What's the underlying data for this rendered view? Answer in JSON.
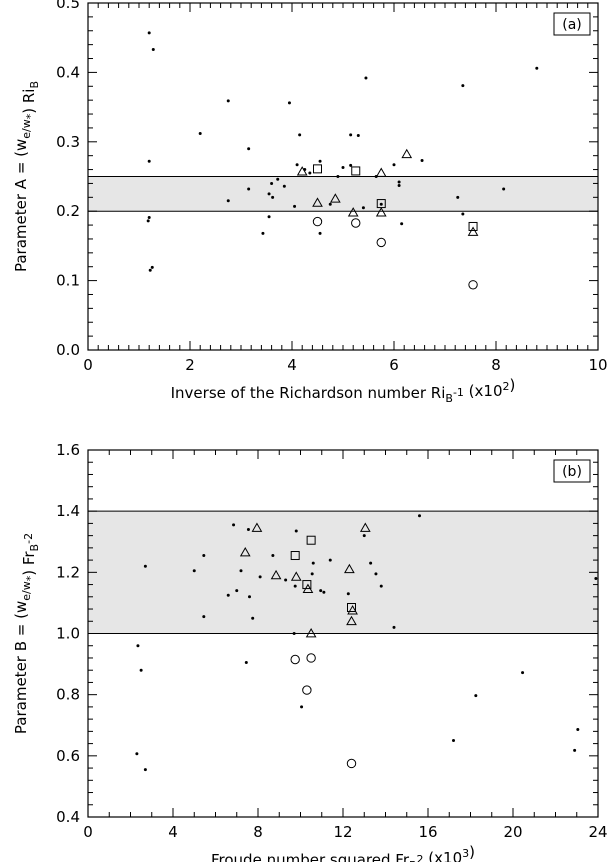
{
  "chart_data": [
    {
      "type": "scatter",
      "panel_label": "(a)",
      "xlabel": "Inverse of the Richardson number Ri_B^-1 (x10^2)",
      "ylabel": "Parameter A = (w_e/w_*) Ri_B",
      "xlim": [
        0,
        10
      ],
      "ylim": [
        0.0,
        0.5
      ],
      "xticks": [
        0,
        2,
        4,
        6,
        8,
        10
      ],
      "yticks": [
        0.0,
        0.1,
        0.2,
        0.3,
        0.4,
        0.5
      ],
      "shaded_band": [
        0.2,
        0.25
      ],
      "grid": false,
      "series": [
        {
          "marker": "dot",
          "points": [
            [
              1.2,
              0.457
            ],
            [
              1.28,
              0.433
            ],
            [
              1.2,
              0.272
            ],
            [
              1.18,
              0.186
            ],
            [
              1.2,
              0.191
            ],
            [
              1.22,
              0.115
            ],
            [
              1.26,
              0.119
            ],
            [
              2.2,
              0.312
            ],
            [
              2.75,
              0.359
            ],
            [
              2.75,
              0.215
            ],
            [
              3.15,
              0.29
            ],
            [
              3.15,
              0.232
            ],
            [
              3.43,
              0.168
            ],
            [
              3.55,
              0.192
            ],
            [
              3.55,
              0.225
            ],
            [
              3.6,
              0.24
            ],
            [
              3.62,
              0.22
            ],
            [
              3.72,
              0.246
            ],
            [
              3.85,
              0.236
            ],
            [
              3.95,
              0.356
            ],
            [
              4.05,
              0.207
            ],
            [
              4.1,
              0.267
            ],
            [
              4.15,
              0.31
            ],
            [
              4.25,
              0.26
            ],
            [
              4.35,
              0.255
            ],
            [
              4.55,
              0.168
            ],
            [
              4.55,
              0.272
            ],
            [
              4.75,
              0.21
            ],
            [
              4.9,
              0.25
            ],
            [
              5.0,
              0.263
            ],
            [
              5.15,
              0.266
            ],
            [
              5.15,
              0.31
            ],
            [
              5.3,
              0.309
            ],
            [
              5.4,
              0.205
            ],
            [
              5.45,
              0.392
            ],
            [
              5.65,
              0.25
            ],
            [
              5.75,
              0.21
            ],
            [
              6.0,
              0.267
            ],
            [
              6.1,
              0.237
            ],
            [
              6.1,
              0.242
            ],
            [
              6.15,
              0.182
            ],
            [
              6.55,
              0.273
            ],
            [
              7.25,
              0.22
            ],
            [
              7.35,
              0.381
            ],
            [
              7.35,
              0.196
            ],
            [
              8.15,
              0.232
            ],
            [
              8.8,
              0.406
            ]
          ]
        },
        {
          "marker": "triangle",
          "points": [
            [
              4.2,
              0.257
            ],
            [
              4.5,
              0.212
            ],
            [
              4.85,
              0.218
            ],
            [
              5.2,
              0.198
            ],
            [
              5.75,
              0.255
            ],
            [
              5.75,
              0.198
            ],
            [
              6.25,
              0.282
            ],
            [
              7.55,
              0.17
            ]
          ]
        },
        {
          "marker": "square",
          "points": [
            [
              4.5,
              0.261
            ],
            [
              5.25,
              0.258
            ],
            [
              5.75,
              0.211
            ],
            [
              7.55,
              0.178
            ]
          ]
        },
        {
          "marker": "circle",
          "points": [
            [
              4.5,
              0.185
            ],
            [
              5.25,
              0.183
            ],
            [
              5.75,
              0.155
            ],
            [
              7.55,
              0.094
            ]
          ]
        }
      ]
    },
    {
      "type": "scatter",
      "panel_label": "(b)",
      "xlabel": "Froude number squared Fr_B^2 (x10^3)",
      "ylabel": "Parameter B = (w_e/w_*) Fr_B^-2",
      "xlim": [
        0,
        24
      ],
      "ylim": [
        0.4,
        1.6
      ],
      "xticks": [
        0,
        4,
        8,
        12,
        16,
        20,
        24
      ],
      "yticks": [
        0.4,
        0.6,
        0.8,
        1.0,
        1.2,
        1.4,
        1.6
      ],
      "shaded_band": [
        1.0,
        1.4
      ],
      "grid": false,
      "series": [
        {
          "marker": "dot",
          "points": [
            [
              2.35,
              0.96
            ],
            [
              2.3,
              0.607
            ],
            [
              2.5,
              0.88
            ],
            [
              2.7,
              1.22
            ],
            [
              2.7,
              0.555
            ],
            [
              5.0,
              1.205
            ],
            [
              5.45,
              1.255
            ],
            [
              5.45,
              1.055
            ],
            [
              6.6,
              1.125
            ],
            [
              6.85,
              1.355
            ],
            [
              7.0,
              1.14
            ],
            [
              7.2,
              1.205
            ],
            [
              7.45,
              0.905
            ],
            [
              7.55,
              1.34
            ],
            [
              7.6,
              1.12
            ],
            [
              7.75,
              1.05
            ],
            [
              8.1,
              1.185
            ],
            [
              8.7,
              1.255
            ],
            [
              9.3,
              1.175
            ],
            [
              9.7,
              1.0
            ],
            [
              9.75,
              1.155
            ],
            [
              9.8,
              1.335
            ],
            [
              10.05,
              0.76
            ],
            [
              10.55,
              1.195
            ],
            [
              10.6,
              1.23
            ],
            [
              10.95,
              1.14
            ],
            [
              11.1,
              1.135
            ],
            [
              11.4,
              1.24
            ],
            [
              12.25,
              1.13
            ],
            [
              13.0,
              1.32
            ],
            [
              13.3,
              1.23
            ],
            [
              13.55,
              1.195
            ],
            [
              13.8,
              1.155
            ],
            [
              14.4,
              1.02
            ],
            [
              15.6,
              1.385
            ],
            [
              17.2,
              0.65
            ],
            [
              18.25,
              0.797
            ],
            [
              20.45,
              0.872
            ],
            [
              22.9,
              0.618
            ],
            [
              23.05,
              0.686
            ],
            [
              23.9,
              1.18
            ]
          ]
        },
        {
          "marker": "triangle",
          "points": [
            [
              7.4,
              1.265
            ],
            [
              7.95,
              1.345
            ],
            [
              8.85,
              1.19
            ],
            [
              9.8,
              1.185
            ],
            [
              10.35,
              1.145
            ],
            [
              10.5,
              1.0
            ],
            [
              12.3,
              1.21
            ],
            [
              12.4,
              1.04
            ],
            [
              12.45,
              1.075
            ],
            [
              13.05,
              1.345
            ]
          ]
        },
        {
          "marker": "square",
          "points": [
            [
              9.75,
              1.255
            ],
            [
              10.3,
              1.16
            ],
            [
              10.5,
              1.305
            ],
            [
              12.4,
              1.085
            ]
          ]
        },
        {
          "marker": "circle",
          "points": [
            [
              9.75,
              0.915
            ],
            [
              10.3,
              0.815
            ],
            [
              10.5,
              0.92
            ],
            [
              12.4,
              0.575
            ]
          ]
        }
      ]
    }
  ]
}
